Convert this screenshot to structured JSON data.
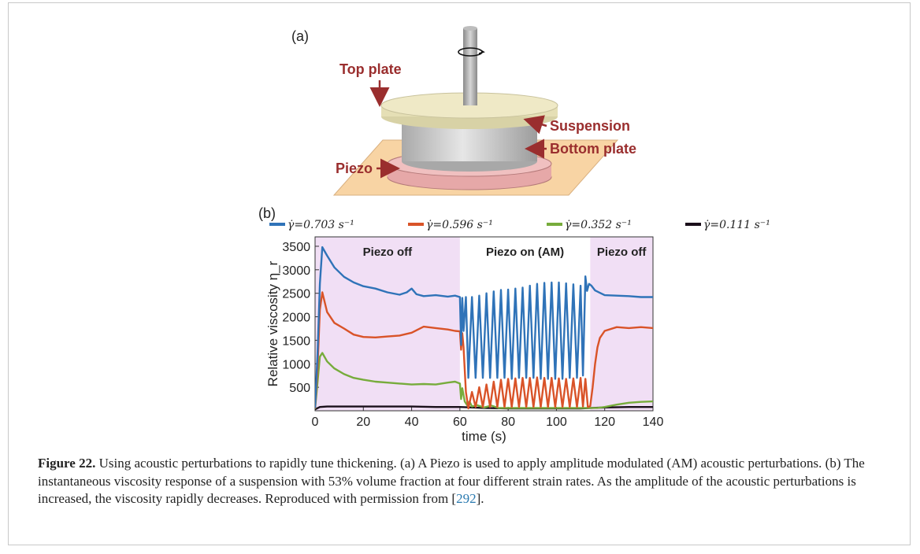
{
  "panel_a": {
    "label": "(a)",
    "labels": {
      "top_plate": "Top plate",
      "suspension": "Suspension",
      "bottom_plate": "Bottom plate",
      "piezo": "Piezo"
    }
  },
  "panel_b": {
    "label": "(b)"
  },
  "regions": [
    {
      "label": "Piezo off",
      "x_start": 0,
      "x_end": 60,
      "shaded": true
    },
    {
      "label": "Piezo on (AM)",
      "x_start": 60,
      "x_end": 114,
      "shaded": false
    },
    {
      "label": "Piezo off",
      "x_start": 114,
      "x_end": 140,
      "shaded": true
    }
  ],
  "chart_data": {
    "type": "line",
    "xlabel": "time (s)",
    "ylabel": "Relative viscosity η_r",
    "xlim": [
      0,
      140
    ],
    "ylim": [
      0,
      3700
    ],
    "xticks": [
      0,
      20,
      40,
      60,
      80,
      100,
      120,
      140
    ],
    "yticks": [
      500,
      1000,
      1500,
      2000,
      2500,
      3000,
      3500
    ],
    "legend_position": "top",
    "series": [
      {
        "name": "γ̇=0.703 s⁻¹",
        "color": "#2f73b8",
        "x": [
          0,
          1,
          2,
          3,
          5,
          8,
          12,
          16,
          20,
          25,
          30,
          35,
          38,
          40,
          42,
          45,
          50,
          55,
          58,
          60,
          60.5,
          61,
          61.5,
          62.5,
          63.5,
          65,
          66.5,
          68,
          69.5,
          71,
          72.5,
          74,
          75.5,
          77,
          78.5,
          80,
          81.5,
          83,
          84.5,
          86,
          87.5,
          89,
          90.5,
          92,
          93.5,
          95,
          96.5,
          98,
          99.5,
          101,
          102.5,
          104,
          105.5,
          107,
          108.5,
          110,
          111,
          112,
          112.7,
          113.5,
          114.5,
          116,
          120,
          125,
          130,
          135,
          140
        ],
        "y": [
          60,
          1200,
          2700,
          3480,
          3300,
          3050,
          2850,
          2730,
          2650,
          2600,
          2520,
          2470,
          2520,
          2600,
          2480,
          2440,
          2460,
          2430,
          2450,
          2420,
          1400,
          2400,
          1700,
          2420,
          700,
          2420,
          700,
          2450,
          700,
          2500,
          700,
          2540,
          700,
          2570,
          700,
          2580,
          680,
          2600,
          700,
          2620,
          700,
          2660,
          700,
          2700,
          680,
          2720,
          680,
          2730,
          680,
          2730,
          680,
          2710,
          700,
          2690,
          700,
          2660,
          750,
          2860,
          2550,
          2700,
          2660,
          2560,
          2460,
          2450,
          2440,
          2420,
          2420
        ]
      },
      {
        "name": "γ̇=0.596 s⁻¹",
        "color": "#d95328",
        "x": [
          0,
          1,
          2,
          3,
          5,
          8,
          12,
          16,
          20,
          25,
          30,
          35,
          40,
          45,
          50,
          55,
          58,
          60,
          60.5,
          61,
          61.5,
          62.5,
          63.5,
          65,
          66.5,
          68,
          69.5,
          71,
          72.5,
          74,
          75.5,
          77,
          78.5,
          80,
          81.5,
          83,
          84.5,
          86,
          87.5,
          89,
          90.5,
          92,
          93.5,
          95,
          96.5,
          98,
          99.5,
          101,
          102.5,
          104,
          105.5,
          107,
          108.5,
          110,
          111,
          112,
          113,
          114,
          115,
          116,
          117,
          118,
          120,
          125,
          130,
          135,
          140
        ],
        "y": [
          50,
          900,
          2150,
          2520,
          2100,
          1870,
          1750,
          1620,
          1570,
          1560,
          1580,
          1600,
          1660,
          1790,
          1760,
          1730,
          1700,
          1690,
          1300,
          1650,
          1350,
          400,
          50,
          400,
          80,
          500,
          80,
          560,
          80,
          620,
          80,
          660,
          80,
          680,
          80,
          690,
          80,
          700,
          80,
          700,
          80,
          710,
          80,
          700,
          80,
          700,
          80,
          690,
          80,
          680,
          80,
          690,
          80,
          700,
          90,
          680,
          80,
          100,
          500,
          1000,
          1350,
          1550,
          1700,
          1780,
          1760,
          1780,
          1760
        ]
      },
      {
        "name": "γ̇=0.352 s⁻¹",
        "color": "#77ac3c",
        "x": [
          0,
          1,
          2,
          3,
          5,
          8,
          12,
          16,
          20,
          25,
          30,
          35,
          40,
          45,
          50,
          55,
          58,
          60,
          60.5,
          61,
          62,
          63,
          64,
          65,
          67,
          70,
          73,
          76,
          80,
          90,
          100,
          110,
          114,
          117,
          120,
          125,
          130,
          135,
          140
        ],
        "y": [
          40,
          600,
          1150,
          1230,
          1050,
          900,
          780,
          700,
          660,
          620,
          600,
          580,
          560,
          570,
          560,
          600,
          620,
          580,
          250,
          480,
          200,
          120,
          200,
          90,
          120,
          70,
          110,
          60,
          60,
          60,
          60,
          60,
          60,
          60,
          80,
          130,
          170,
          190,
          200
        ]
      },
      {
        "name": "γ̇=0.111 s⁻¹",
        "color": "#1a0f1a",
        "x": [
          0,
          2,
          5,
          10,
          20,
          30,
          40,
          50,
          60,
          70,
          80,
          90,
          100,
          110,
          120,
          130,
          140
        ],
        "y": [
          30,
          80,
          90,
          90,
          90,
          90,
          90,
          80,
          80,
          60,
          50,
          50,
          50,
          50,
          70,
          80,
          80
        ]
      }
    ]
  },
  "caption": {
    "figure_label": "Figure 22.",
    "text": " Using acoustic perturbations to rapidly tune thickening. (a) A Piezo is used to apply amplitude modulated (AM) acoustic perturbations. (b) The instantaneous viscosity response of a suspension with 53% volume fraction at four different strain rates. As the amplitude of the acoustic perturbations is increased, the viscosity rapidly decreases. Reproduced with permission from [",
    "citation": "292",
    "suffix": "]."
  }
}
